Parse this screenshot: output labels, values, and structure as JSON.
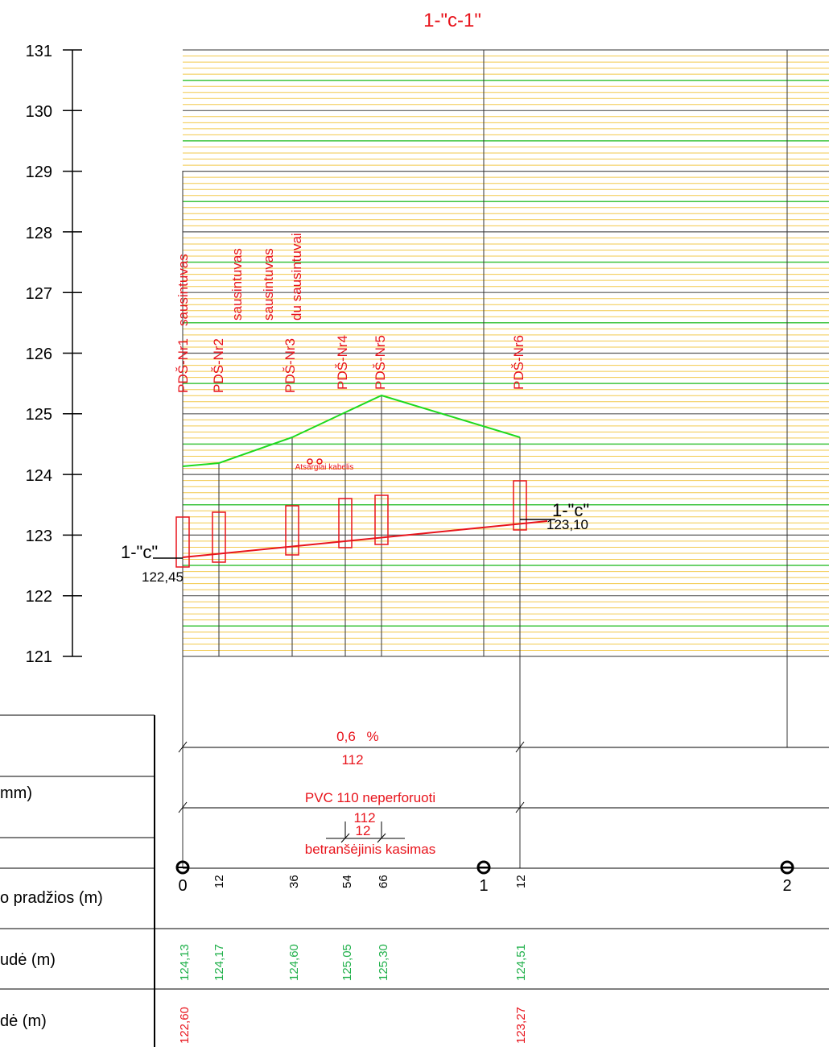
{
  "title": "1-\"c-1\"",
  "y_axis": {
    "ticks": [
      "131",
      "130",
      "129",
      "128",
      "127",
      "126",
      "125",
      "124",
      "123",
      "122",
      "121"
    ]
  },
  "drains": [
    {
      "name": "PDŠ-Nr1",
      "note": "sausintuvas",
      "ground": "124,13",
      "invert": "122,60",
      "offset": "0"
    },
    {
      "name": "PDŠ-Nr2",
      "note": "sausintuvas",
      "ground": "124,17",
      "offset": "12"
    },
    {
      "name": "PDŠ-Nr3",
      "note": "sausintuvas",
      "note2": "du sausintuvai",
      "ground": "124,60",
      "offset": "36"
    },
    {
      "name": "PDŠ-Nr4",
      "ground": "125,05",
      "offset": "54"
    },
    {
      "name": "PDŠ-Nr5",
      "ground": "125,30",
      "offset": "66"
    },
    {
      "name": "PDŠ-Nr6",
      "ground": "124,51",
      "invert": "123,27",
      "offset": "12"
    }
  ],
  "pipe_start": {
    "label": "1-\"c\"",
    "elev": "122,45"
  },
  "pipe_end": {
    "label": "1-\"c\"",
    "elev": "123,10"
  },
  "cable_label": "Atsargiai kabelis",
  "slope": {
    "value": "0,6",
    "unit": "%",
    "length": "112"
  },
  "pipe": {
    "type": "PVC 110  neperforuoti",
    "length": "112"
  },
  "trench": {
    "length": "12",
    "method": "betranšėjinis kasimas"
  },
  "pickets": [
    "0",
    "1",
    "2"
  ],
  "table_rows": {
    "row2": "mm)",
    "row4": "o pradžios (m)",
    "row5": "udė (m)",
    "row6": "dė (m)"
  },
  "colors": {
    "red": "#e8141c",
    "green": "#1ed91e",
    "green_dark": "#22b14c",
    "grid_yellow": "#f2c94c",
    "grid_green": "#3ec43e",
    "grid_dark": "#595959"
  }
}
